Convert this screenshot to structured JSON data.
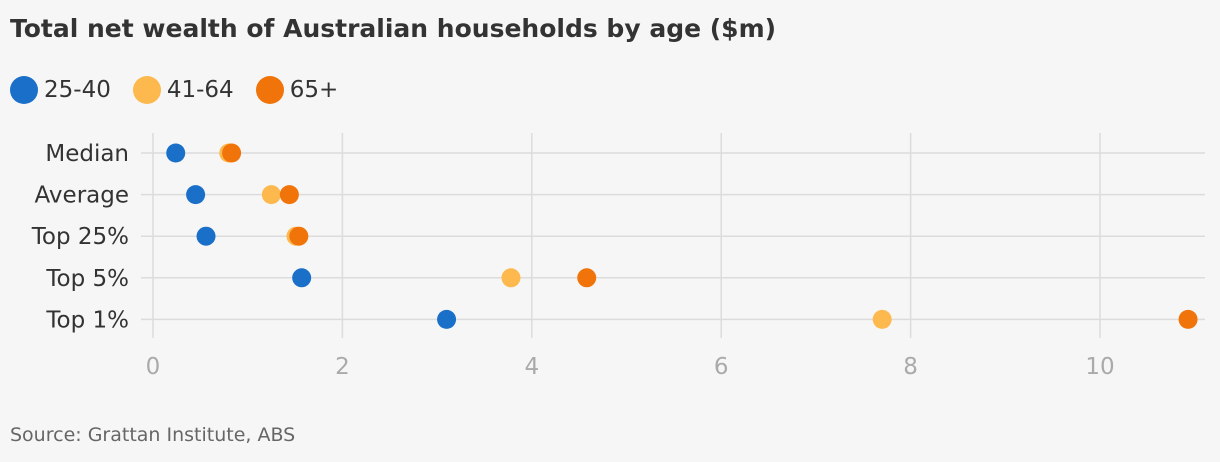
{
  "title": "Total net wealth of Australian households by age ($m)",
  "source": "Source: Grattan Institute, ABS",
  "chart_data": {
    "type": "scatter",
    "title": "Total net wealth of Australian households by age ($m)",
    "categories": [
      "Median",
      "Average",
      "Top 25%",
      "Top 5%",
      "Top 1%"
    ],
    "series": [
      {
        "name": "25-40",
        "color": "#1a6fc9",
        "values": [
          0.24,
          0.45,
          0.56,
          1.57,
          3.1
        ]
      },
      {
        "name": "41-64",
        "color": "#fdb94e",
        "values": [
          0.8,
          1.25,
          1.51,
          3.78,
          7.7
        ]
      },
      {
        "name": "65+",
        "color": "#f07409",
        "values": [
          0.83,
          1.44,
          1.54,
          4.58,
          10.93
        ]
      }
    ],
    "xlim": [
      0,
      11
    ],
    "xticks": [
      "0",
      "2",
      "4",
      "6",
      "8",
      "10"
    ],
    "grid": true,
    "legend_position": "top-left"
  }
}
